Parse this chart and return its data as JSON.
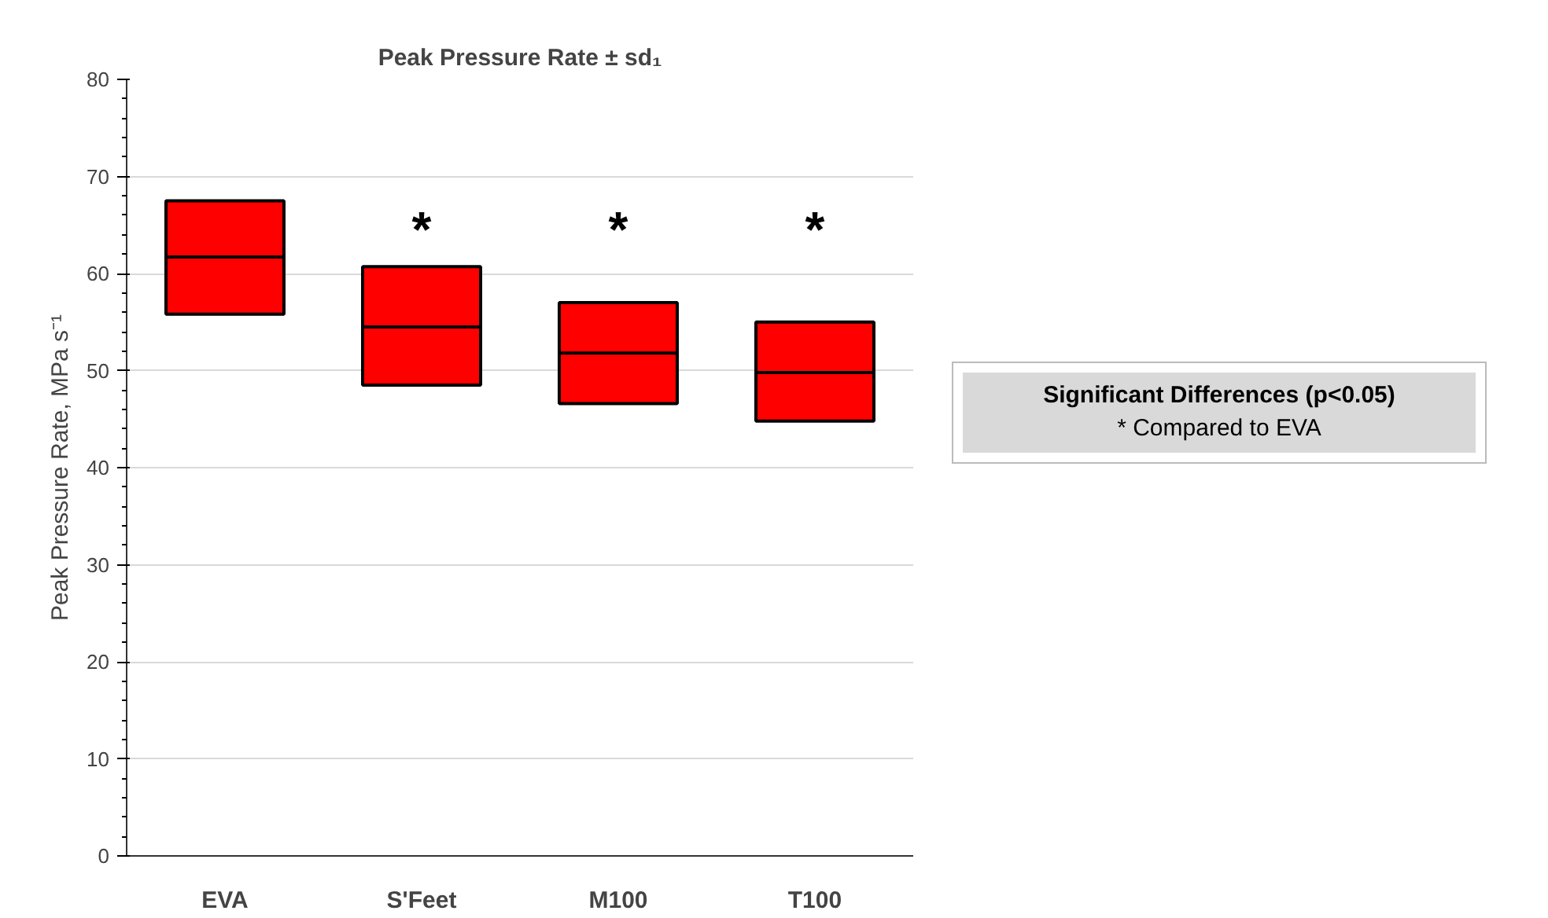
{
  "chart_data": {
    "type": "box",
    "title": "Peak Pressure Rate ± sd₁",
    "ylabel": "Peak Pressure Rate, MPa s⁻¹",
    "categories": [
      "EVA",
      "S'Feet",
      "M100",
      "T100"
    ],
    "boxes": [
      {
        "low": 55.8,
        "q1": 55.8,
        "median": 61.7,
        "q3": 67.5,
        "high": 67.5
      },
      {
        "low": 48.5,
        "q1": 48.5,
        "median": 54.5,
        "q3": 60.7,
        "high": 60.7
      },
      {
        "low": 46.6,
        "q1": 46.6,
        "median": 51.8,
        "q3": 57,
        "high": 57
      },
      {
        "low": 44.8,
        "q1": 44.8,
        "median": 49.8,
        "q3": 55,
        "high": 55
      }
    ],
    "color": "#ff0000",
    "ylim": [
      0,
      80
    ],
    "yticks": [
      0,
      10,
      20,
      30,
      40,
      50,
      60,
      70,
      80
    ],
    "grid": "y",
    "annotations": [
      "*",
      "*",
      "*",
      "Significant Differences (p<0.05)",
      "* Compared to EVA"
    ]
  }
}
